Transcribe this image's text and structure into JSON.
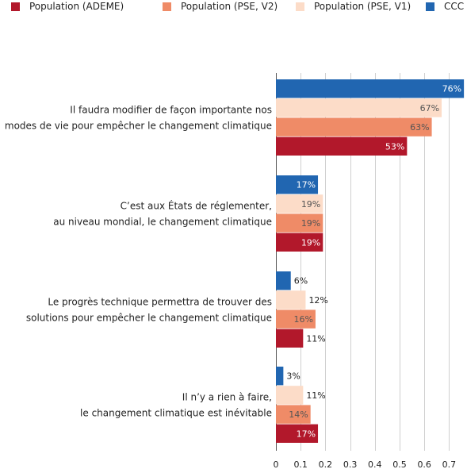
{
  "chart_data": {
    "type": "bar",
    "orientation": "horizontal",
    "categories": [
      [
        "Il faudra modifier de façon importante nos",
        "modes de vie pour empêcher le changement climatique"
      ],
      [
        "C’est aux États de réglementer,",
        "au niveau mondial, le changement climatique"
      ],
      [
        "Le progrès technique permettra de trouver des",
        "solutions pour empêcher le changement climatique"
      ],
      [
        "Il n’y a rien à faire,",
        "le changement climatique est inévitable"
      ]
    ],
    "series": [
      {
        "name": "CCC",
        "color": "#2166b1",
        "values": [
          0.76,
          0.17,
          0.06,
          0.03
        ],
        "labels": [
          "76%",
          "17%",
          "6%",
          "3%"
        ]
      },
      {
        "name": "Population (PSE, V1)",
        "color": "#fcdcc8",
        "values": [
          0.67,
          0.19,
          0.12,
          0.11
        ],
        "labels": [
          "67%",
          "19%",
          "12%",
          "11%"
        ]
      },
      {
        "name": "Population (PSE, V2)",
        "color": "#ef8b67",
        "values": [
          0.63,
          0.19,
          0.16,
          0.14
        ],
        "labels": [
          "63%",
          "19%",
          "16%",
          "14%"
        ]
      },
      {
        "name": "Population (ADEME)",
        "color": "#b2182b",
        "values": [
          0.53,
          0.19,
          0.11,
          0.17
        ],
        "labels": [
          "53%",
          "19%",
          "11%",
          "17%"
        ]
      }
    ],
    "legend": [
      {
        "name": "Population (ADEME)",
        "color": "#b2182b"
      },
      {
        "name": "Population (PSE, V2)",
        "color": "#ef8b67"
      },
      {
        "name": "Population (PSE, V1)",
        "color": "#fcdcc8"
      },
      {
        "name": "CCC",
        "color": "#2166b1"
      }
    ],
    "legend_position": "top",
    "xticks": [
      "0",
      "0.1",
      "0.2",
      "0.3",
      "0.4",
      "0.5",
      "0.6",
      "0.7"
    ],
    "xlim": [
      0,
      0.76
    ],
    "grid": "vertical",
    "title": "",
    "xlabel": "",
    "ylabel": ""
  }
}
